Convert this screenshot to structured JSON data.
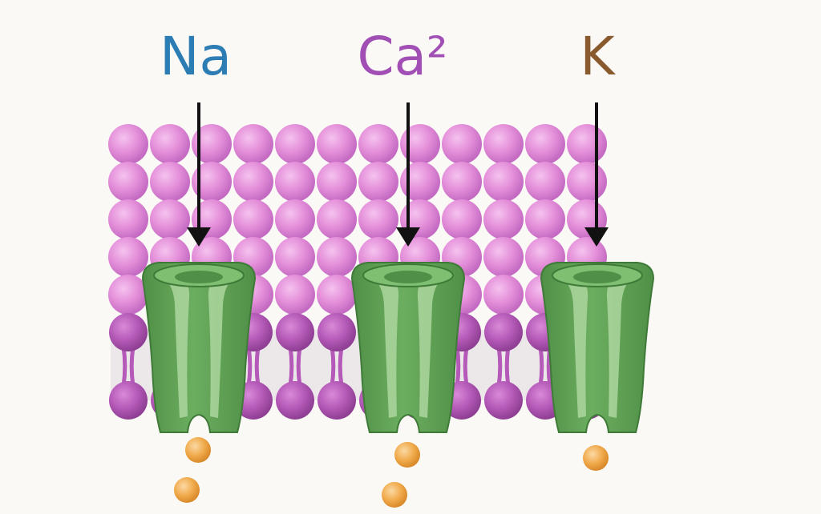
{
  "ions": [
    {
      "label": "Na",
      "color": "#2b7db4"
    },
    {
      "label": "Ca²",
      "color": "#a14fb4"
    },
    {
      "label": "K",
      "color": "#8a5a2f"
    }
  ],
  "colors": {
    "background": "#faf9f6",
    "lipid_head": "#e48fd9",
    "lipid_head_dark": "#b55ab8",
    "channel": "#64a35a",
    "channel_light": "#a8d49a",
    "particle": "#f0a94a",
    "arrow": "#111111"
  }
}
